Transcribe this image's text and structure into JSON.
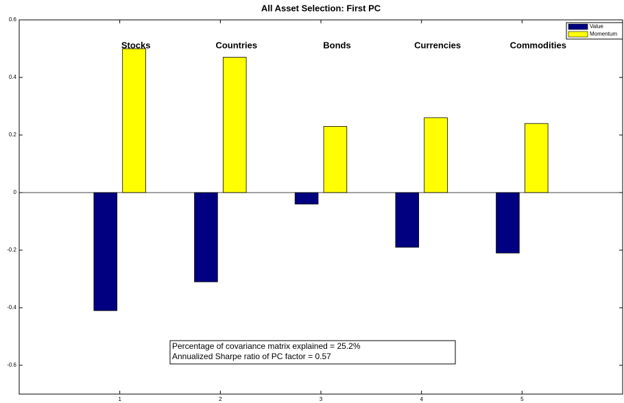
{
  "chart_data": {
    "type": "bar",
    "title": "All Asset Selection:  First PC",
    "x": [
      1,
      2,
      3,
      4,
      5
    ],
    "group_labels": [
      "Stocks",
      "Countries",
      "Bonds",
      "Currencies",
      "Commodities"
    ],
    "series": [
      {
        "name": "Value",
        "color": "#000080",
        "values": [
          -0.41,
          -0.31,
          -0.04,
          -0.19,
          -0.21
        ]
      },
      {
        "name": "Momentum",
        "color": "#ffff00",
        "values": [
          0.5,
          0.47,
          0.23,
          0.26,
          0.24
        ]
      }
    ],
    "xlim": [
      0,
      6
    ],
    "xticks": [
      1,
      2,
      3,
      4,
      5
    ],
    "ylim": [
      -0.7,
      0.6
    ],
    "yticks": [
      -0.6,
      -0.4,
      -0.2,
      0,
      0.2,
      0.4,
      0.6
    ],
    "annotations": [
      "Percentage of covariance matrix explained = 25.2%",
      "Annualized Sharpe ratio of PC factor = 0.57"
    ],
    "legend": "upper right"
  }
}
